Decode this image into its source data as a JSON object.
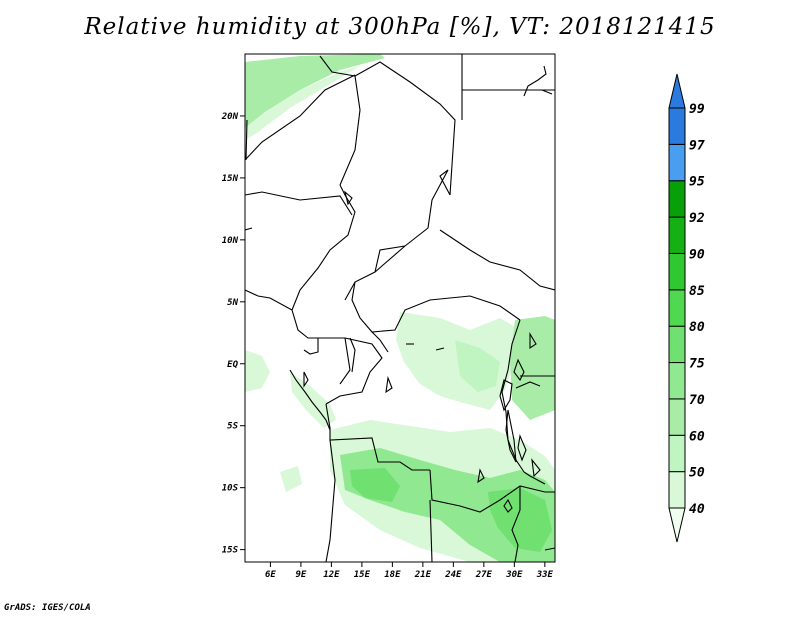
{
  "title": "Relative humidity at 300hPa [%], VT: 2018121415",
  "credit": "GrADS: IGES/COLA",
  "map": {
    "lon_range": [
      3.5,
      34
    ],
    "lat_range": [
      -16,
      25
    ],
    "lon_ticks": [
      "6E",
      "9E",
      "12E",
      "15E",
      "18E",
      "21E",
      "24E",
      "27E",
      "30E",
      "33E"
    ],
    "lat_ticks": [
      "20N",
      "15N",
      "10N",
      "5N",
      "EQ",
      "5S",
      "10S",
      "15S"
    ],
    "variable": "Relative humidity",
    "level": "300hPa",
    "units": "%",
    "valid_time": "2018121415"
  },
  "colorbar": {
    "levels": [
      "40",
      "50",
      "60",
      "70",
      "75",
      "80",
      "85",
      "90",
      "92",
      "95",
      "97",
      "99"
    ],
    "colors": [
      "#f0fff0",
      "#d8f8d8",
      "#c0f4c0",
      "#a8eca8",
      "#90e890",
      "#70e070",
      "#50d850",
      "#30c830",
      "#14b014",
      "#08a008",
      "#4a9ef0",
      "#2a7ae0",
      "#1a56c8",
      "#2a7ae0"
    ]
  }
}
